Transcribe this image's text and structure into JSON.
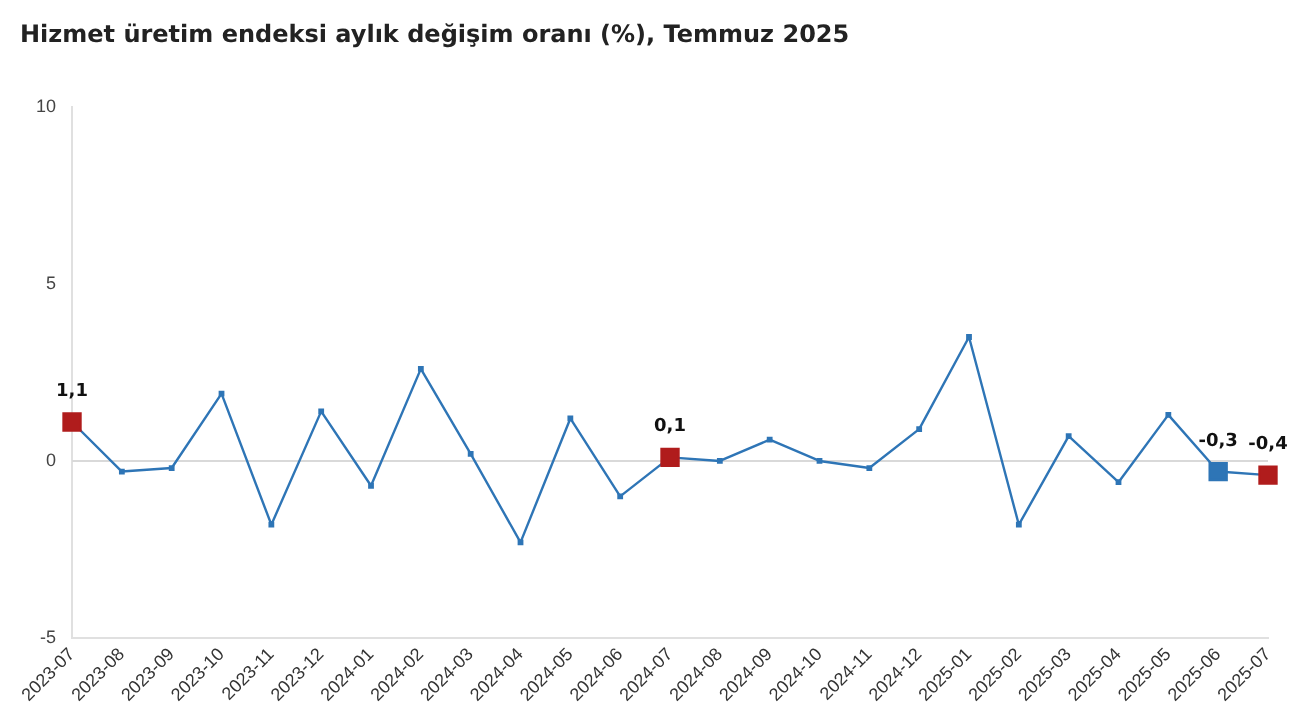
{
  "chart_data": {
    "type": "line",
    "title": "Hizmet üretim endeksi aylık değişim oranı (%), Temmuz 2025",
    "categories": [
      "2023-07",
      "2023-08",
      "2023-09",
      "2023-10",
      "2023-11",
      "2023-12",
      "2024-01",
      "2024-02",
      "2024-03",
      "2024-04",
      "2024-05",
      "2024-06",
      "2024-07",
      "2024-08",
      "2024-09",
      "2024-10",
      "2024-11",
      "2024-12",
      "2025-01",
      "2025-02",
      "2025-03",
      "2025-04",
      "2025-05",
      "2025-06",
      "2025-07"
    ],
    "series": [
      {
        "color": "#2e75b6",
        "values": [
          1.1,
          -0.3,
          -0.2,
          1.9,
          -1.8,
          1.4,
          -0.7,
          2.6,
          0.2,
          -2.3,
          1.2,
          -1.0,
          0.1,
          0.0,
          0.6,
          0.0,
          -0.2,
          0.9,
          3.5,
          -1.8,
          0.7,
          -0.6,
          1.3,
          -0.3,
          -0.4
        ],
        "colors": [
          "#b01c1c",
          null,
          null,
          null,
          null,
          null,
          null,
          null,
          null,
          null,
          null,
          null,
          "#b01c1c",
          null,
          null,
          null,
          null,
          null,
          null,
          null,
          null,
          null,
          null,
          "#2e75b6",
          "#b01c1c"
        ],
        "value_labels": [
          "1,1",
          null,
          null,
          null,
          null,
          null,
          null,
          null,
          null,
          null,
          null,
          null,
          "0,1",
          null,
          null,
          null,
          null,
          null,
          null,
          null,
          null,
          null,
          null,
          "-0,3",
          "-0,4"
        ]
      }
    ],
    "ylim": [
      -5,
      10
    ],
    "yticks": [
      -5,
      0,
      5,
      10
    ],
    "grid": false,
    "legend": false,
    "marker": "square",
    "line_style": "solid",
    "ref_lines": [
      {
        "axis": "y",
        "value": 0,
        "color": "#d9d9d9"
      }
    ]
  }
}
